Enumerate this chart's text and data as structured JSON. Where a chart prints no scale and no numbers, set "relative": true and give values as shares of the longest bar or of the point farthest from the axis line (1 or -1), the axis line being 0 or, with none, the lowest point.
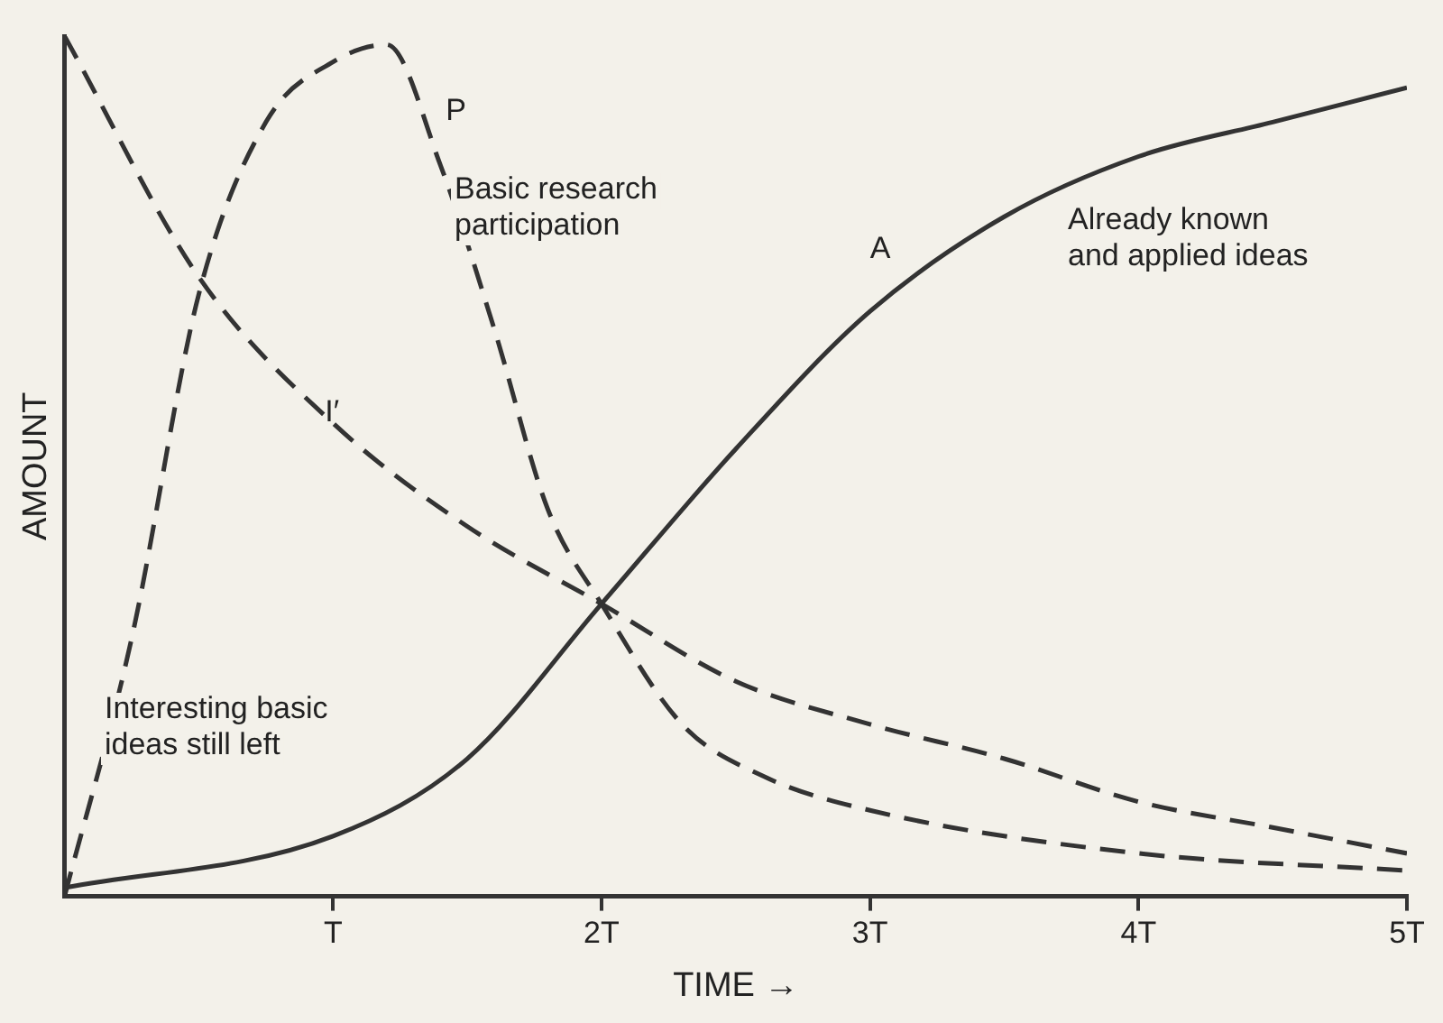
{
  "chart_data": {
    "type": "line",
    "relative": true,
    "xlabel": "TIME →",
    "ylabel": "AMOUNT",
    "xlim": [
      0,
      5
    ],
    "xticks": [
      {
        "value": 1,
        "label": "T"
      },
      {
        "value": 2,
        "label": "2T"
      },
      {
        "value": 3,
        "label": "3T"
      },
      {
        "value": 4,
        "label": "4T"
      },
      {
        "value": 5,
        "label": "5T"
      }
    ],
    "grid": false,
    "legend": false,
    "marker": "none",
    "series": [
      {
        "name": "P",
        "color": "#333333",
        "line_style": "dashed",
        "x": [
          0,
          0.25,
          0.5,
          0.75,
          1,
          1.2,
          1.4,
          1.6,
          1.8,
          2,
          2.3,
          2.6,
          3,
          4,
          5
        ],
        "values": [
          0,
          0.3,
          0.7,
          0.9,
          0.97,
          0.99,
          0.85,
          0.66,
          0.45,
          0.34,
          0.2,
          0.14,
          0.1,
          0.05,
          0.03
        ]
      },
      {
        "name": "I′",
        "color": "#333333",
        "line_style": "dashed",
        "x": [
          0,
          0.5,
          1,
          1.5,
          2,
          2.5,
          3,
          3.5,
          4,
          4.5,
          5
        ],
        "values": [
          1,
          0.72,
          0.55,
          0.43,
          0.34,
          0.25,
          0.2,
          0.16,
          0.11,
          0.08,
          0.05
        ]
      },
      {
        "name": "A",
        "color": "#333333",
        "line_style": "solid",
        "x": [
          0,
          1,
          1.5,
          2,
          2.5,
          3,
          3.5,
          4,
          4.5,
          5
        ],
        "values": [
          0.01,
          0.07,
          0.16,
          0.34,
          0.52,
          0.68,
          0.79,
          0.86,
          0.9,
          0.94
        ]
      }
    ],
    "annotations": [
      "Basic research participation",
      "Already known and applied ideas",
      "Interesting basic ideas still left"
    ]
  }
}
